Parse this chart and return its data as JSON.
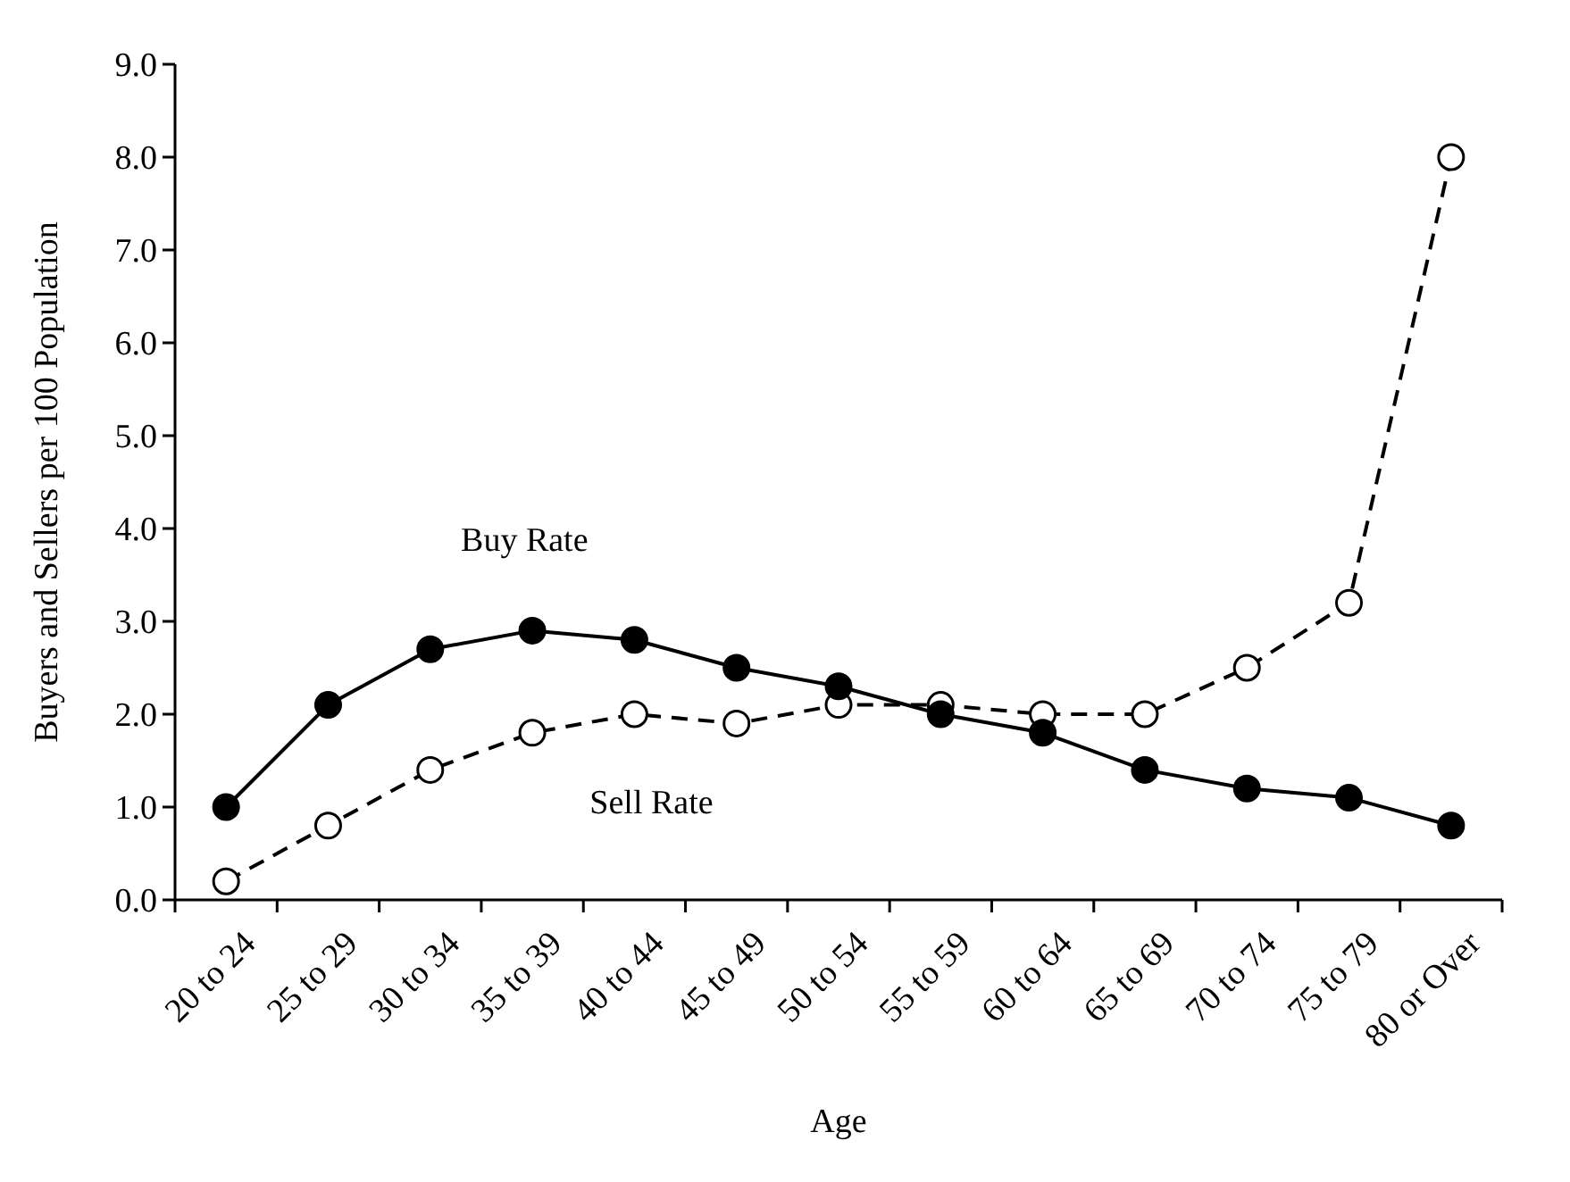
{
  "chart_data": {
    "type": "line",
    "xlabel": "Age",
    "ylabel": "Buyers and Sellers per 100 Population",
    "categories": [
      "20 to 24",
      "25 to 29",
      "30 to 34",
      "35 to 39",
      "40 to 44",
      "45 to 49",
      "50 to 54",
      "55 to 59",
      "60 to 64",
      "65 to 69",
      "70 to 74",
      "75 to 79",
      "80 or Over"
    ],
    "series": [
      {
        "name": "Buy Rate",
        "color": "#000000",
        "line_style": "solid",
        "marker": "circle",
        "values": [
          1.0,
          2.1,
          2.7,
          2.9,
          2.8,
          2.5,
          2.3,
          2.0,
          1.8,
          1.4,
          1.2,
          1.1,
          0.8
        ]
      },
      {
        "name": "Sell Rate",
        "color": "#000000",
        "line_style": "dashed",
        "marker": "circle",
        "values": [
          0.2,
          0.8,
          1.4,
          1.8,
          2.0,
          1.9,
          2.1,
          2.1,
          2.0,
          2.0,
          2.5,
          3.2,
          8.0
        ]
      }
    ],
    "ylim": [
      0,
      9
    ],
    "yticks": [
      {
        "value": 0,
        "label": "0.0"
      },
      {
        "value": 1,
        "label": "1.0"
      },
      {
        "value": 2,
        "label": "2.0"
      },
      {
        "value": 3,
        "label": "3.0"
      },
      {
        "value": 4,
        "label": "4.0"
      },
      {
        "value": 5,
        "label": "5.0"
      },
      {
        "value": 6,
        "label": "6.0"
      },
      {
        "value": 7,
        "label": "7.0"
      },
      {
        "value": 8,
        "label": "8.0"
      },
      {
        "value": 9,
        "label": "9.0"
      }
    ],
    "grid": false
  }
}
